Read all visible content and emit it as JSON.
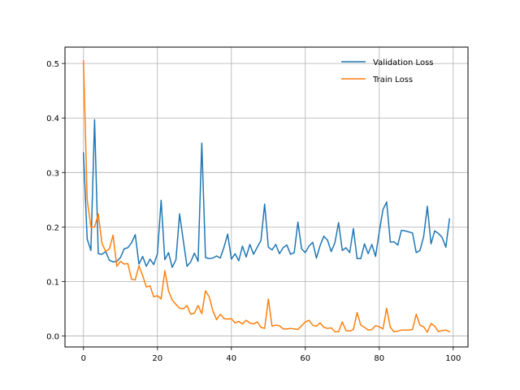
{
  "chart_data": {
    "type": "line",
    "title": "",
    "xlabel": "",
    "ylabel": "",
    "xlim": [
      -5,
      104
    ],
    "ylim": [
      -0.02,
      0.53
    ],
    "xticks": [
      0,
      20,
      40,
      60,
      80,
      100
    ],
    "yticks": [
      0.0,
      0.1,
      0.2,
      0.3,
      0.4,
      0.5
    ],
    "xtick_labels": [
      "0",
      "20",
      "40",
      "60",
      "80",
      "100"
    ],
    "ytick_labels": [
      "0.0",
      "0.1",
      "0.2",
      "0.3",
      "0.4",
      "0.5"
    ],
    "grid": true,
    "legend_position": "top-right",
    "x": [
      0,
      1,
      2,
      3,
      4,
      5,
      6,
      7,
      8,
      9,
      10,
      11,
      12,
      13,
      14,
      15,
      16,
      17,
      18,
      19,
      20,
      21,
      22,
      23,
      24,
      25,
      26,
      27,
      28,
      29,
      30,
      31,
      32,
      33,
      34,
      35,
      36,
      37,
      38,
      39,
      40,
      41,
      42,
      43,
      44,
      45,
      46,
      47,
      48,
      49,
      50,
      51,
      52,
      53,
      54,
      55,
      56,
      57,
      58,
      59,
      60,
      61,
      62,
      63,
      64,
      65,
      66,
      67,
      68,
      69,
      70,
      71,
      72,
      73,
      74,
      75,
      76,
      77,
      78,
      79,
      80,
      81,
      82,
      83,
      84,
      85,
      86,
      87,
      88,
      89,
      90,
      91,
      92,
      93,
      94,
      95,
      96,
      97,
      98,
      99
    ],
    "series": [
      {
        "name": "Validation Loss",
        "color": "#1f77b4",
        "values": [
          0.336,
          0.178,
          0.157,
          0.397,
          0.151,
          0.15,
          0.155,
          0.139,
          0.136,
          0.137,
          0.144,
          0.16,
          0.162,
          0.171,
          0.186,
          0.132,
          0.146,
          0.128,
          0.141,
          0.131,
          0.151,
          0.249,
          0.14,
          0.153,
          0.126,
          0.14,
          0.224,
          0.175,
          0.128,
          0.136,
          0.152,
          0.137,
          0.354,
          0.144,
          0.142,
          0.143,
          0.147,
          0.143,
          0.163,
          0.187,
          0.141,
          0.151,
          0.138,
          0.165,
          0.145,
          0.168,
          0.15,
          0.163,
          0.175,
          0.242,
          0.163,
          0.158,
          0.168,
          0.151,
          0.162,
          0.167,
          0.15,
          0.153,
          0.209,
          0.16,
          0.153,
          0.165,
          0.172,
          0.143,
          0.166,
          0.183,
          0.176,
          0.155,
          0.171,
          0.208,
          0.157,
          0.162,
          0.153,
          0.197,
          0.142,
          0.142,
          0.169,
          0.151,
          0.168,
          0.146,
          0.191,
          0.232,
          0.246,
          0.172,
          0.173,
          0.167,
          0.194,
          0.193,
          0.191,
          0.189,
          0.153,
          0.157,
          0.182,
          0.238,
          0.169,
          0.193,
          0.188,
          0.181,
          0.163,
          0.215
        ]
      },
      {
        "name": "Train Loss",
        "color": "#ff7f0e",
        "values": [
          0.505,
          0.25,
          0.2,
          0.2,
          0.224,
          0.17,
          0.155,
          0.16,
          0.185,
          0.128,
          0.137,
          0.132,
          0.133,
          0.104,
          0.103,
          0.129,
          0.111,
          0.09,
          0.092,
          0.072,
          0.074,
          0.068,
          0.12,
          0.083,
          0.066,
          0.058,
          0.051,
          0.05,
          0.056,
          0.04,
          0.042,
          0.056,
          0.041,
          0.083,
          0.072,
          0.046,
          0.03,
          0.04,
          0.032,
          0.031,
          0.032,
          0.024,
          0.027,
          0.022,
          0.029,
          0.024,
          0.022,
          0.026,
          0.016,
          0.014,
          0.068,
          0.018,
          0.02,
          0.019,
          0.013,
          0.013,
          0.014,
          0.013,
          0.012,
          0.019,
          0.026,
          0.029,
          0.02,
          0.018,
          0.024,
          0.016,
          0.014,
          0.015,
          0.008,
          0.008,
          0.026,
          0.01,
          0.009,
          0.012,
          0.043,
          0.02,
          0.016,
          0.011,
          0.012,
          0.019,
          0.017,
          0.013,
          0.051,
          0.016,
          0.008,
          0.009,
          0.011,
          0.011,
          0.011,
          0.012,
          0.04,
          0.02,
          0.017,
          0.007,
          0.023,
          0.018,
          0.008,
          0.01,
          0.011,
          0.008
        ]
      }
    ]
  }
}
